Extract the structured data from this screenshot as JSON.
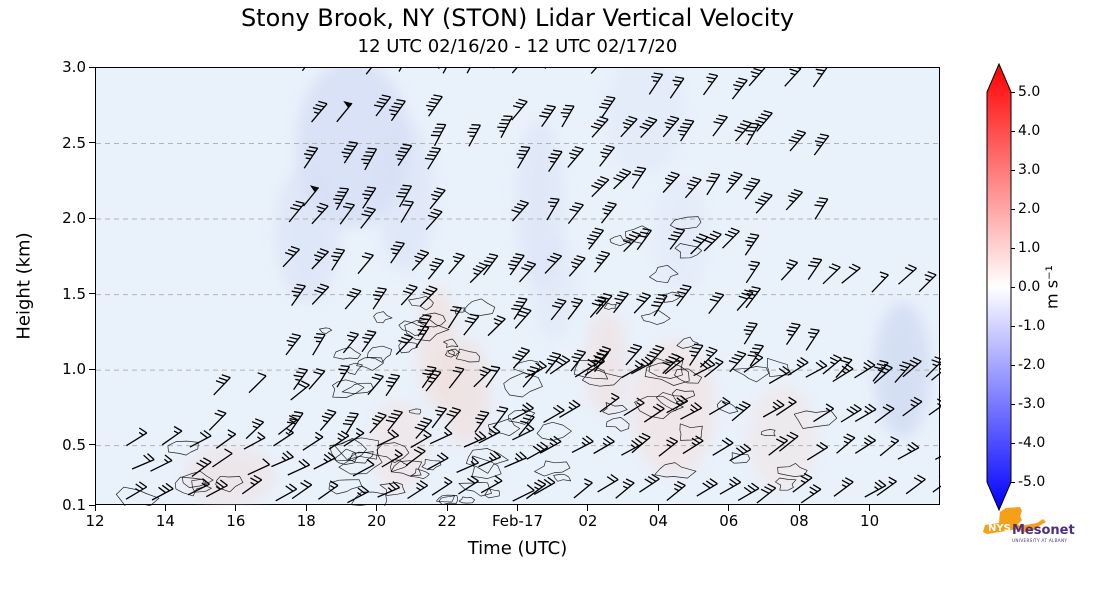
{
  "figure": {
    "title": "Stony Brook, NY (STON) Lidar Vertical Velocity",
    "subtitle": "12 UTC 02/16/20 - 12 UTC 02/17/20"
  },
  "chart_data": {
    "type": "heatmap",
    "title": "Stony Brook, NY (STON) Lidar Vertical Velocity",
    "subtitle": "12 UTC 02/16/20 - 12 UTC 02/17/20",
    "xlabel": "Time (UTC)",
    "ylabel": "Height (km)",
    "x_tick_labels": [
      "12",
      "14",
      "16",
      "18",
      "20",
      "22",
      "Feb-17",
      "02",
      "04",
      "06",
      "08",
      "10"
    ],
    "x_tick_hours": [
      12,
      14,
      16,
      18,
      20,
      22,
      24,
      26,
      28,
      30,
      32,
      34
    ],
    "x_range_hours": [
      12,
      36
    ],
    "y_tick_labels": [
      "0.1",
      "0.5",
      "1.0",
      "1.5",
      "2.0",
      "2.5",
      "3.0"
    ],
    "y_tick_values": [
      0.1,
      0.5,
      1.0,
      1.5,
      2.0,
      2.5,
      3.0
    ],
    "ylim": [
      0.1,
      3.0
    ],
    "grid": "horizontal-dashed",
    "background_value_color": "#e9f1fb",
    "colorbar": {
      "label": "m s⁻¹",
      "tick_labels": [
        "5.0",
        "4.0",
        "3.0",
        "2.0",
        "1.0",
        "0.0",
        "-1.0",
        "-2.0",
        "-3.0",
        "-4.0",
        "-5.0"
      ],
      "vmin": -5.0,
      "vmax": 5.0,
      "color_neg": "#0000ff",
      "color_zero": "#ffffff",
      "color_pos": "#ff0000"
    },
    "barb_regions": [
      {
        "t0": 13.0,
        "t1": 23.8,
        "h0": 0.16,
        "h1": 0.5,
        "nx": 15,
        "ny": 3,
        "angle": 30,
        "speed": 22
      },
      {
        "t0": 15.4,
        "t1": 17.4,
        "h0": 0.58,
        "h1": 0.82,
        "nx": 3,
        "ny": 2,
        "angle": 45,
        "speed": 22
      },
      {
        "t0": 17.4,
        "t1": 21.2,
        "h0": 0.58,
        "h1": 1.95,
        "nx": 6,
        "ny": 6,
        "angle": 52,
        "speed": 32
      },
      {
        "t0": 18.0,
        "t1": 21.5,
        "h0": 2.05,
        "h1": 2.98,
        "nx": 5,
        "ny": 4,
        "angle": 56,
        "speed": 46
      },
      {
        "t0": 21.3,
        "t1": 23.9,
        "h0": 0.58,
        "h1": 1.6,
        "nx": 5,
        "ny": 4,
        "angle": 50,
        "speed": 30
      },
      {
        "t0": 21.8,
        "t1": 23.3,
        "h0": 2.5,
        "h1": 2.98,
        "nx": 3,
        "ny": 2,
        "angle": 56,
        "speed": 40
      },
      {
        "t0": 24.0,
        "t1": 26.2,
        "h0": 1.0,
        "h1": 2.98,
        "nx": 4,
        "ny": 7,
        "angle": 53,
        "speed": 38
      },
      {
        "t0": 24.0,
        "t1": 35.7,
        "h0": 0.16,
        "h1": 0.95,
        "nx": 18,
        "ny": 4,
        "angle": 34,
        "speed": 25
      },
      {
        "t0": 26.2,
        "t1": 30.6,
        "h0": 1.0,
        "h1": 2.55,
        "nx": 8,
        "ny": 5,
        "angle": 51,
        "speed": 38
      },
      {
        "t0": 27.5,
        "t1": 30.2,
        "h0": 2.62,
        "h1": 2.98,
        "nx": 4,
        "ny": 1,
        "angle": 55,
        "speed": 35
      },
      {
        "t0": 30.6,
        "t1": 32.4,
        "h0": 1.15,
        "h1": 2.9,
        "nx": 3,
        "ny": 5,
        "angle": 53,
        "speed": 34
      },
      {
        "t0": 32.4,
        "t1": 35.5,
        "h0": 0.95,
        "h1": 1.55,
        "nx": 5,
        "ny": 2,
        "angle": 45,
        "speed": 26
      }
    ],
    "contour_regions": [
      {
        "t0": 13.0,
        "t1": 23.8,
        "h0": 0.13,
        "h1": 0.48,
        "n": 26,
        "r": 11
      },
      {
        "t0": 18.5,
        "t1": 23.8,
        "h0": 0.55,
        "h1": 1.55,
        "n": 16,
        "r": 9
      },
      {
        "t0": 24.0,
        "t1": 32.5,
        "h0": 0.18,
        "h1": 1.05,
        "n": 26,
        "r": 11
      },
      {
        "t0": 26.0,
        "t1": 31.0,
        "h0": 1.1,
        "h1": 2.0,
        "n": 9,
        "r": 8
      },
      {
        "t0": 20.4,
        "t1": 22.6,
        "h0": 0.95,
        "h1": 1.55,
        "n": 5,
        "r": 7
      }
    ],
    "shading_patches": [
      {
        "t": 19.3,
        "h": 2.5,
        "rt": 1.6,
        "rh": 0.55,
        "color": "#ccd6f2",
        "opacity": 0.55
      },
      {
        "t": 18.0,
        "h": 1.9,
        "rt": 0.9,
        "rh": 0.45,
        "color": "#d5def5",
        "opacity": 0.5
      },
      {
        "t": 20.8,
        "h": 2.15,
        "rt": 0.8,
        "rh": 0.5,
        "color": "#d5def5",
        "opacity": 0.45
      },
      {
        "t": 24.6,
        "h": 2.1,
        "rt": 0.7,
        "rh": 0.55,
        "color": "#d8e1f6",
        "opacity": 0.5
      },
      {
        "t": 27.6,
        "h": 2.7,
        "rt": 1.1,
        "rh": 0.4,
        "color": "#dee5f7",
        "opacity": 0.45
      },
      {
        "t": 25.0,
        "h": 1.55,
        "rt": 0.6,
        "rh": 0.35,
        "color": "#dce3f6",
        "opacity": 0.45
      },
      {
        "t": 34.9,
        "h": 1.0,
        "rt": 0.8,
        "rh": 0.45,
        "color": "#c9d4f0",
        "opacity": 0.6
      },
      {
        "t": 28.6,
        "h": 1.9,
        "rt": 0.8,
        "rh": 0.4,
        "color": "#e0e6f8",
        "opacity": 0.4
      },
      {
        "t": 21.7,
        "h": 1.15,
        "rt": 0.55,
        "rh": 0.4,
        "color": "#f5dbd6",
        "opacity": 0.55
      },
      {
        "t": 22.5,
        "h": 0.85,
        "rt": 0.7,
        "rh": 0.35,
        "color": "#f3d8d2",
        "opacity": 0.5
      },
      {
        "t": 20.6,
        "h": 0.5,
        "rt": 0.8,
        "rh": 0.3,
        "color": "#f5ddd8",
        "opacity": 0.45
      },
      {
        "t": 28.4,
        "h": 0.75,
        "rt": 1.2,
        "rh": 0.45,
        "color": "#f5ddd8",
        "opacity": 0.5
      },
      {
        "t": 26.5,
        "h": 1.05,
        "rt": 0.6,
        "rh": 0.35,
        "color": "#f3d9d4",
        "opacity": 0.45
      },
      {
        "t": 15.8,
        "h": 0.3,
        "rt": 1.3,
        "rh": 0.2,
        "color": "#f2d8d4",
        "opacity": 0.4
      },
      {
        "t": 31.5,
        "h": 0.55,
        "rt": 1.0,
        "rh": 0.35,
        "color": "#f5e0da",
        "opacity": 0.4
      }
    ]
  },
  "logo": {
    "nys": "NYS",
    "mesonet": "Mesonet",
    "tagline": "UNIVERSITY AT ALBANY",
    "state_color": "#F6A01A",
    "text_color": "#4B2E83"
  }
}
